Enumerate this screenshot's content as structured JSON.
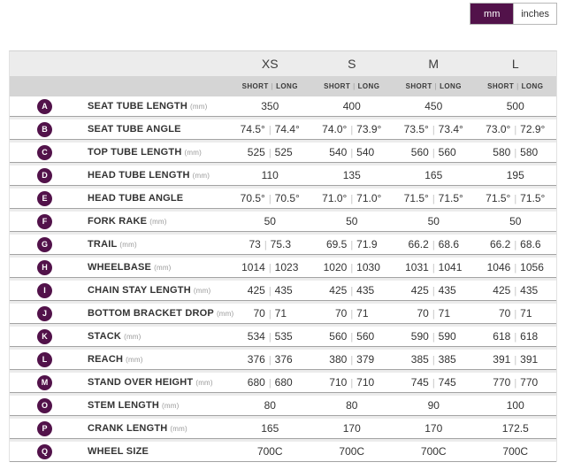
{
  "toggle": {
    "mm_label": "mm",
    "inches_label": "inches",
    "selected": "mm"
  },
  "colors": {
    "accent": "#52124a",
    "header_bg": "#ececec",
    "subheader_bg": "#d5d5d5",
    "row_border": "#a3a3a3",
    "gap_bg": "#ececec",
    "separator": "#c4c4c4",
    "toggle_border": "#b8b8b8"
  },
  "table": {
    "sizes": [
      "XS",
      "S",
      "M",
      "L"
    ],
    "sub_headers": [
      "SHORT",
      "LONG"
    ],
    "rows": [
      {
        "letter": "A",
        "label": "SEAT TUBE LENGTH",
        "unit": "(mm)",
        "values": [
          "350",
          "400",
          "450",
          "500"
        ]
      },
      {
        "letter": "B",
        "label": "SEAT TUBE ANGLE",
        "unit": "",
        "values": [
          [
            "74.5°",
            "74.4°"
          ],
          [
            "74.0°",
            "73.9°"
          ],
          [
            "73.5°",
            "73.4°"
          ],
          [
            "73.0°",
            "72.9°"
          ]
        ]
      },
      {
        "letter": "C",
        "label": "TOP TUBE LENGTH",
        "unit": "(mm)",
        "values": [
          [
            "525",
            "525"
          ],
          [
            "540",
            "540"
          ],
          [
            "560",
            "560"
          ],
          [
            "580",
            "580"
          ]
        ]
      },
      {
        "letter": "D",
        "label": "HEAD TUBE LENGTH",
        "unit": "(mm)",
        "values": [
          "110",
          "135",
          "165",
          "195"
        ]
      },
      {
        "letter": "E",
        "label": "HEAD TUBE ANGLE",
        "unit": "",
        "values": [
          [
            "70.5°",
            "70.5°"
          ],
          [
            "71.0°",
            "71.0°"
          ],
          [
            "71.5°",
            "71.5°"
          ],
          [
            "71.5°",
            "71.5°"
          ]
        ]
      },
      {
        "letter": "F",
        "label": "FORK RAKE",
        "unit": "(mm)",
        "values": [
          "50",
          "50",
          "50",
          "50"
        ]
      },
      {
        "letter": "G",
        "label": "TRAIL",
        "unit": "(mm)",
        "values": [
          [
            "73",
            "75.3"
          ],
          [
            "69.5",
            "71.9"
          ],
          [
            "66.2",
            "68.6"
          ],
          [
            "66.2",
            "68.6"
          ]
        ]
      },
      {
        "letter": "H",
        "label": "WHEELBASE",
        "unit": "(mm)",
        "values": [
          [
            "1014",
            "1023"
          ],
          [
            "1020",
            "1030"
          ],
          [
            "1031",
            "1041"
          ],
          [
            "1046",
            "1056"
          ]
        ]
      },
      {
        "letter": "I",
        "label": "CHAIN STAY LENGTH",
        "unit": "(mm)",
        "values": [
          [
            "425",
            "435"
          ],
          [
            "425",
            "435"
          ],
          [
            "425",
            "435"
          ],
          [
            "425",
            "435"
          ]
        ]
      },
      {
        "letter": "J",
        "label": "BOTTOM BRACKET DROP",
        "unit": "(mm)",
        "values": [
          [
            "70",
            "71"
          ],
          [
            "70",
            "71"
          ],
          [
            "70",
            "71"
          ],
          [
            "70",
            "71"
          ]
        ]
      },
      {
        "letter": "K",
        "label": "STACK",
        "unit": "(mm)",
        "values": [
          [
            "534",
            "535"
          ],
          [
            "560",
            "560"
          ],
          [
            "590",
            "590"
          ],
          [
            "618",
            "618"
          ]
        ]
      },
      {
        "letter": "L",
        "label": "REACH",
        "unit": "(mm)",
        "values": [
          [
            "376",
            "376"
          ],
          [
            "380",
            "379"
          ],
          [
            "385",
            "385"
          ],
          [
            "391",
            "391"
          ]
        ]
      },
      {
        "letter": "M",
        "label": "STAND OVER HEIGHT",
        "unit": "(mm)",
        "values": [
          [
            "680",
            "680"
          ],
          [
            "710",
            "710"
          ],
          [
            "745",
            "745"
          ],
          [
            "770",
            "770"
          ]
        ]
      },
      {
        "letter": "O",
        "label": "STEM LENGTH",
        "unit": "(mm)",
        "values": [
          "80",
          "80",
          "90",
          "100"
        ]
      },
      {
        "letter": "P",
        "label": "CRANK LENGTH",
        "unit": "(mm)",
        "values": [
          "165",
          "170",
          "170",
          "172.5"
        ]
      },
      {
        "letter": "Q",
        "label": "WHEEL SIZE",
        "unit": "",
        "values": [
          "700C",
          "700C",
          "700C",
          "700C"
        ]
      }
    ]
  }
}
